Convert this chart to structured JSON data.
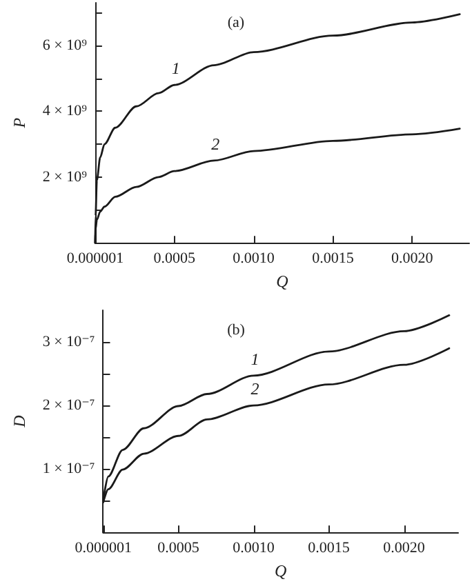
{
  "chart_data": [
    {
      "type": "line",
      "title": "(a)",
      "xlabel": "Q",
      "ylabel": "P",
      "grid": false,
      "legend": false,
      "marker": "none",
      "line_style": "solid",
      "xlim": [
        0,
        0.00236
      ],
      "ylim": [
        0,
        7300000000
      ],
      "xticks": [
        {
          "value": 1e-06,
          "label": "0.000001"
        },
        {
          "value": 0.0005,
          "label": "0.0005"
        },
        {
          "value": 0.001,
          "label": "0.0010"
        },
        {
          "value": 0.0015,
          "label": "0.0015"
        },
        {
          "value": 0.002,
          "label": "0.0020"
        }
      ],
      "yticks": [
        {
          "value": 1000000000,
          "label": null
        },
        {
          "value": 2000000000,
          "label": "2 × 10⁹"
        },
        {
          "value": 3000000000,
          "label": null
        },
        {
          "value": 4000000000,
          "label": "4 × 10⁹"
        },
        {
          "value": 5000000000,
          "label": null
        },
        {
          "value": 6000000000,
          "label": "6 × 10⁹"
        },
        {
          "value": 7000000000,
          "label": null
        }
      ],
      "x": [
        0,
        2.7e-06,
        1.08e-05,
        3.2e-05,
        5.9e-05,
        0.000127,
        0.00026,
        0.0004,
        0.0005,
        0.00075,
        0.001,
        0.0015,
        0.002,
        0.0023
      ],
      "series": [
        {
          "name": "1",
          "color": "#1a1a1a",
          "values": [
            0,
            820000000,
            1900000000,
            2600000000,
            3000000000,
            3500000000,
            4150000000,
            4550000000,
            4800000000,
            5400000000,
            5800000000,
            6300000000,
            6700000000,
            6950000000
          ]
        },
        {
          "name": "2",
          "color": "#1a1a1a",
          "values": [
            0,
            410000000,
            700000000,
            950000000,
            1100000000,
            1400000000,
            1700000000,
            2000000000,
            2180000000,
            2500000000,
            2790000000,
            3100000000,
            3300000000,
            3470000000
          ]
        }
      ]
    },
    {
      "type": "line",
      "title": "(b)",
      "xlabel": "Q",
      "ylabel": "D",
      "grid": false,
      "legend": false,
      "marker": "none",
      "line_style": "solid",
      "xlim": [
        0,
        0.00236
      ],
      "ylim": [
        0,
        3.5e-07
      ],
      "xticks": [
        {
          "value": 1e-06,
          "label": "0.000001"
        },
        {
          "value": 0.0005,
          "label": "0.0005"
        },
        {
          "value": 0.001,
          "label": "0.0010"
        },
        {
          "value": 0.0015,
          "label": "0.0015"
        },
        {
          "value": 0.002,
          "label": "0.0020"
        }
      ],
      "yticks": [
        {
          "value": 5e-08,
          "label": null
        },
        {
          "value": 1e-07,
          "label": "1 × 10⁻⁷"
        },
        {
          "value": 1.5e-07,
          "label": null
        },
        {
          "value": 2e-07,
          "label": "2 × 10⁻⁷"
        },
        {
          "value": 2.5e-07,
          "label": null
        },
        {
          "value": 3e-07,
          "label": "3 × 10⁻⁷"
        }
      ],
      "x": [
        0,
        3.4e-05,
        0.00013,
        0.00027,
        0.0005,
        0.00069,
        0.001,
        0.0015,
        0.002,
        0.0023
      ],
      "series": [
        {
          "name": "1",
          "color": "#1a1a1a",
          "values": [
            5e-08,
            8.8e-08,
            1.3e-07,
            1.64e-07,
            1.99e-07,
            2.18e-07,
            2.47e-07,
            2.85e-07,
            3.17e-07,
            3.42e-07
          ]
        },
        {
          "name": "2",
          "color": "#1a1a1a",
          "values": [
            4.7e-08,
            6.8e-08,
            9.9e-08,
            1.24e-07,
            1.52e-07,
            1.78e-07,
            2e-07,
            2.33e-07,
            2.64e-07,
            2.9e-07
          ]
        }
      ]
    }
  ]
}
